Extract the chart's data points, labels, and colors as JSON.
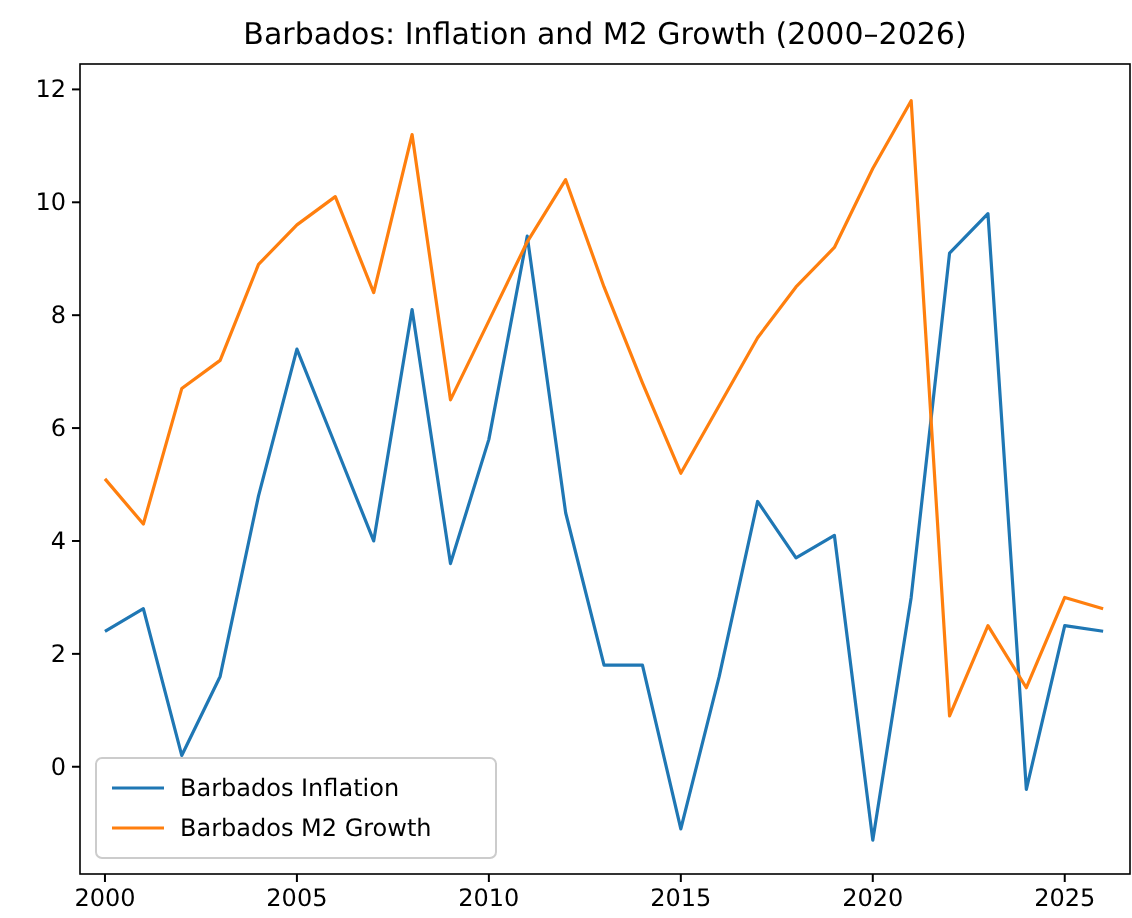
{
  "chart_data": {
    "type": "line",
    "title": "Barbados: Inflation and M2 Growth (2000–2026)",
    "x": [
      2000,
      2001,
      2002,
      2003,
      2004,
      2005,
      2006,
      2007,
      2008,
      2009,
      2010,
      2011,
      2012,
      2013,
      2014,
      2015,
      2016,
      2017,
      2018,
      2019,
      2020,
      2021,
      2022,
      2023,
      2024,
      2025,
      2026
    ],
    "series": [
      {
        "name": "Barbados Inflation",
        "color": "#1f77b4",
        "values": [
          2.4,
          2.8,
          0.2,
          1.6,
          4.8,
          7.4,
          5.7,
          4.0,
          8.1,
          3.6,
          5.8,
          9.4,
          4.5,
          1.8,
          1.8,
          -1.1,
          1.6,
          4.7,
          3.7,
          4.1,
          -1.3,
          3.0,
          9.1,
          9.8,
          -0.4,
          2.5,
          2.4
        ]
      },
      {
        "name": "Barbados M2 Growth",
        "color": "#ff7f0e",
        "values": [
          5.1,
          4.3,
          6.7,
          7.2,
          8.9,
          9.6,
          10.1,
          8.4,
          11.2,
          6.5,
          7.9,
          9.3,
          10.4,
          8.5,
          6.8,
          5.2,
          6.4,
          7.6,
          8.5,
          9.2,
          10.6,
          11.8,
          0.9,
          2.5,
          1.4,
          3.0,
          2.8
        ]
      }
    ],
    "xlim": [
      1999.35,
      2026.7
    ],
    "ylim": [
      -1.9,
      12.45
    ],
    "xticks": [
      2000,
      2005,
      2010,
      2015,
      2020,
      2025
    ],
    "yticks": [
      0,
      2,
      4,
      6,
      8,
      10,
      12
    ],
    "grid": false,
    "legend": "bottom left",
    "marker": "none",
    "line_style": "solid"
  }
}
